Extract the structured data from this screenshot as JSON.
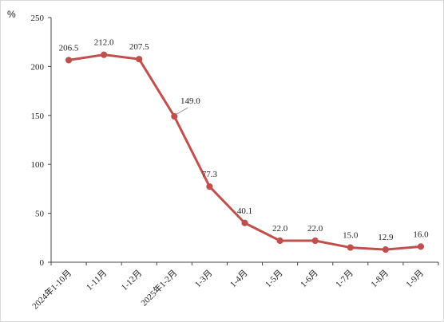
{
  "chart_data": {
    "type": "line",
    "title": "",
    "unit_label": "%",
    "xlabel": "",
    "ylabel": "",
    "ylim": [
      0,
      250
    ],
    "yticks": [
      0,
      50,
      100,
      150,
      200,
      250
    ],
    "categories": [
      "2024年1-10月",
      "1-11月",
      "1-12月",
      "2025年1-2月",
      "1-3月",
      "1-4月",
      "1-5月",
      "1-6月",
      "1-7月",
      "1-8月",
      "1-9月"
    ],
    "series": [
      {
        "values": [
          206.5,
          212.0,
          207.5,
          149.0,
          77.3,
          40.1,
          22.0,
          22.0,
          15.0,
          12.9,
          16.0
        ],
        "labels": [
          "206.5",
          "212.0",
          "207.5",
          "149.0",
          "77.3",
          "40.1",
          "22.0",
          "22.0",
          "15.0",
          "12.9",
          "16.0"
        ],
        "color": "#c0504d"
      }
    ],
    "grid": false,
    "legend": "none"
  }
}
